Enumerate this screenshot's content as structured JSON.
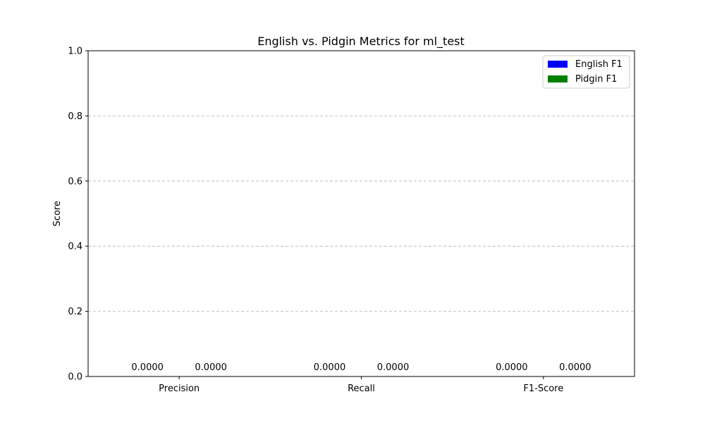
{
  "chart_data": {
    "type": "bar",
    "title": "English vs. Pidgin Metrics for ml_test",
    "xlabel": "",
    "ylabel": "Score",
    "categories": [
      "Precision",
      "Recall",
      "F1-Score"
    ],
    "series": [
      {
        "name": "English F1",
        "color": "#0000ff",
        "values": [
          0.0,
          0.0,
          0.0
        ],
        "labels": [
          "0.0000",
          "0.0000",
          "0.0000"
        ]
      },
      {
        "name": "Pidgin F1",
        "color": "#008000",
        "values": [
          0.0,
          0.0,
          0.0
        ],
        "labels": [
          "0.0000",
          "0.0000",
          "0.0000"
        ]
      }
    ],
    "ylim": [
      0,
      1.0
    ],
    "yticks": [
      "0.0",
      "0.2",
      "0.4",
      "0.6",
      "0.8",
      "1.0"
    ],
    "grid": "y-dashed",
    "legend_position": "top-right"
  }
}
